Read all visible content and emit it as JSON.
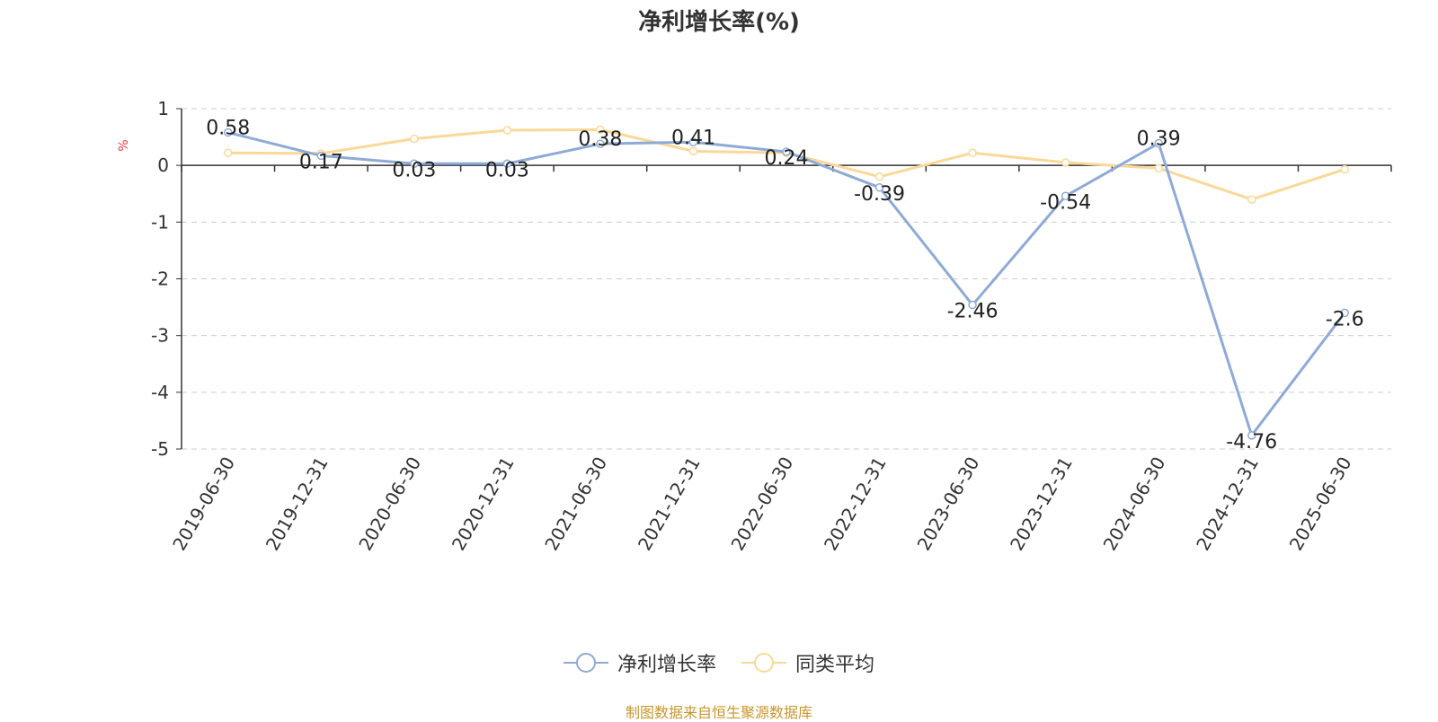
{
  "chart_data": {
    "type": "line",
    "title": "净利增长率(%)",
    "ylabel": "%",
    "xlabel": "",
    "categories": [
      "2019-06-30",
      "2019-12-31",
      "2020-06-30",
      "2020-12-31",
      "2021-06-30",
      "2021-12-31",
      "2022-06-30",
      "2022-12-31",
      "2023-06-30",
      "2023-12-31",
      "2024-06-30",
      "2024-12-31",
      "2025-06-30"
    ],
    "yticks": [
      "1",
      "0",
      "-1",
      "-2",
      "-3",
      "-4",
      "-5"
    ],
    "ylim": [
      -5,
      1
    ],
    "grid": true,
    "legend_position": "bottom",
    "series": [
      {
        "name": "净利增长率",
        "color": "#8eaad6",
        "values": [
          0.58,
          0.17,
          0.03,
          0.03,
          0.38,
          0.41,
          0.24,
          -0.39,
          -2.46,
          -0.54,
          0.39,
          -4.76,
          -2.6
        ],
        "labels": [
          "0.58",
          "0.17",
          "0.03",
          "0.03",
          "0.38",
          "0.41",
          "0.24",
          "-0.39",
          "-2.46",
          "-0.54",
          "0.39",
          "-4.76",
          "-2.6"
        ]
      },
      {
        "name": "同类平均",
        "color": "#fcd898",
        "values": [
          0.22,
          0.21,
          0.47,
          0.62,
          0.63,
          0.25,
          0.22,
          -0.2,
          0.22,
          0.05,
          -0.05,
          -0.6,
          -0.07
        ]
      }
    ]
  },
  "footer": {
    "source": "制图数据来自恒生聚源数据库"
  }
}
